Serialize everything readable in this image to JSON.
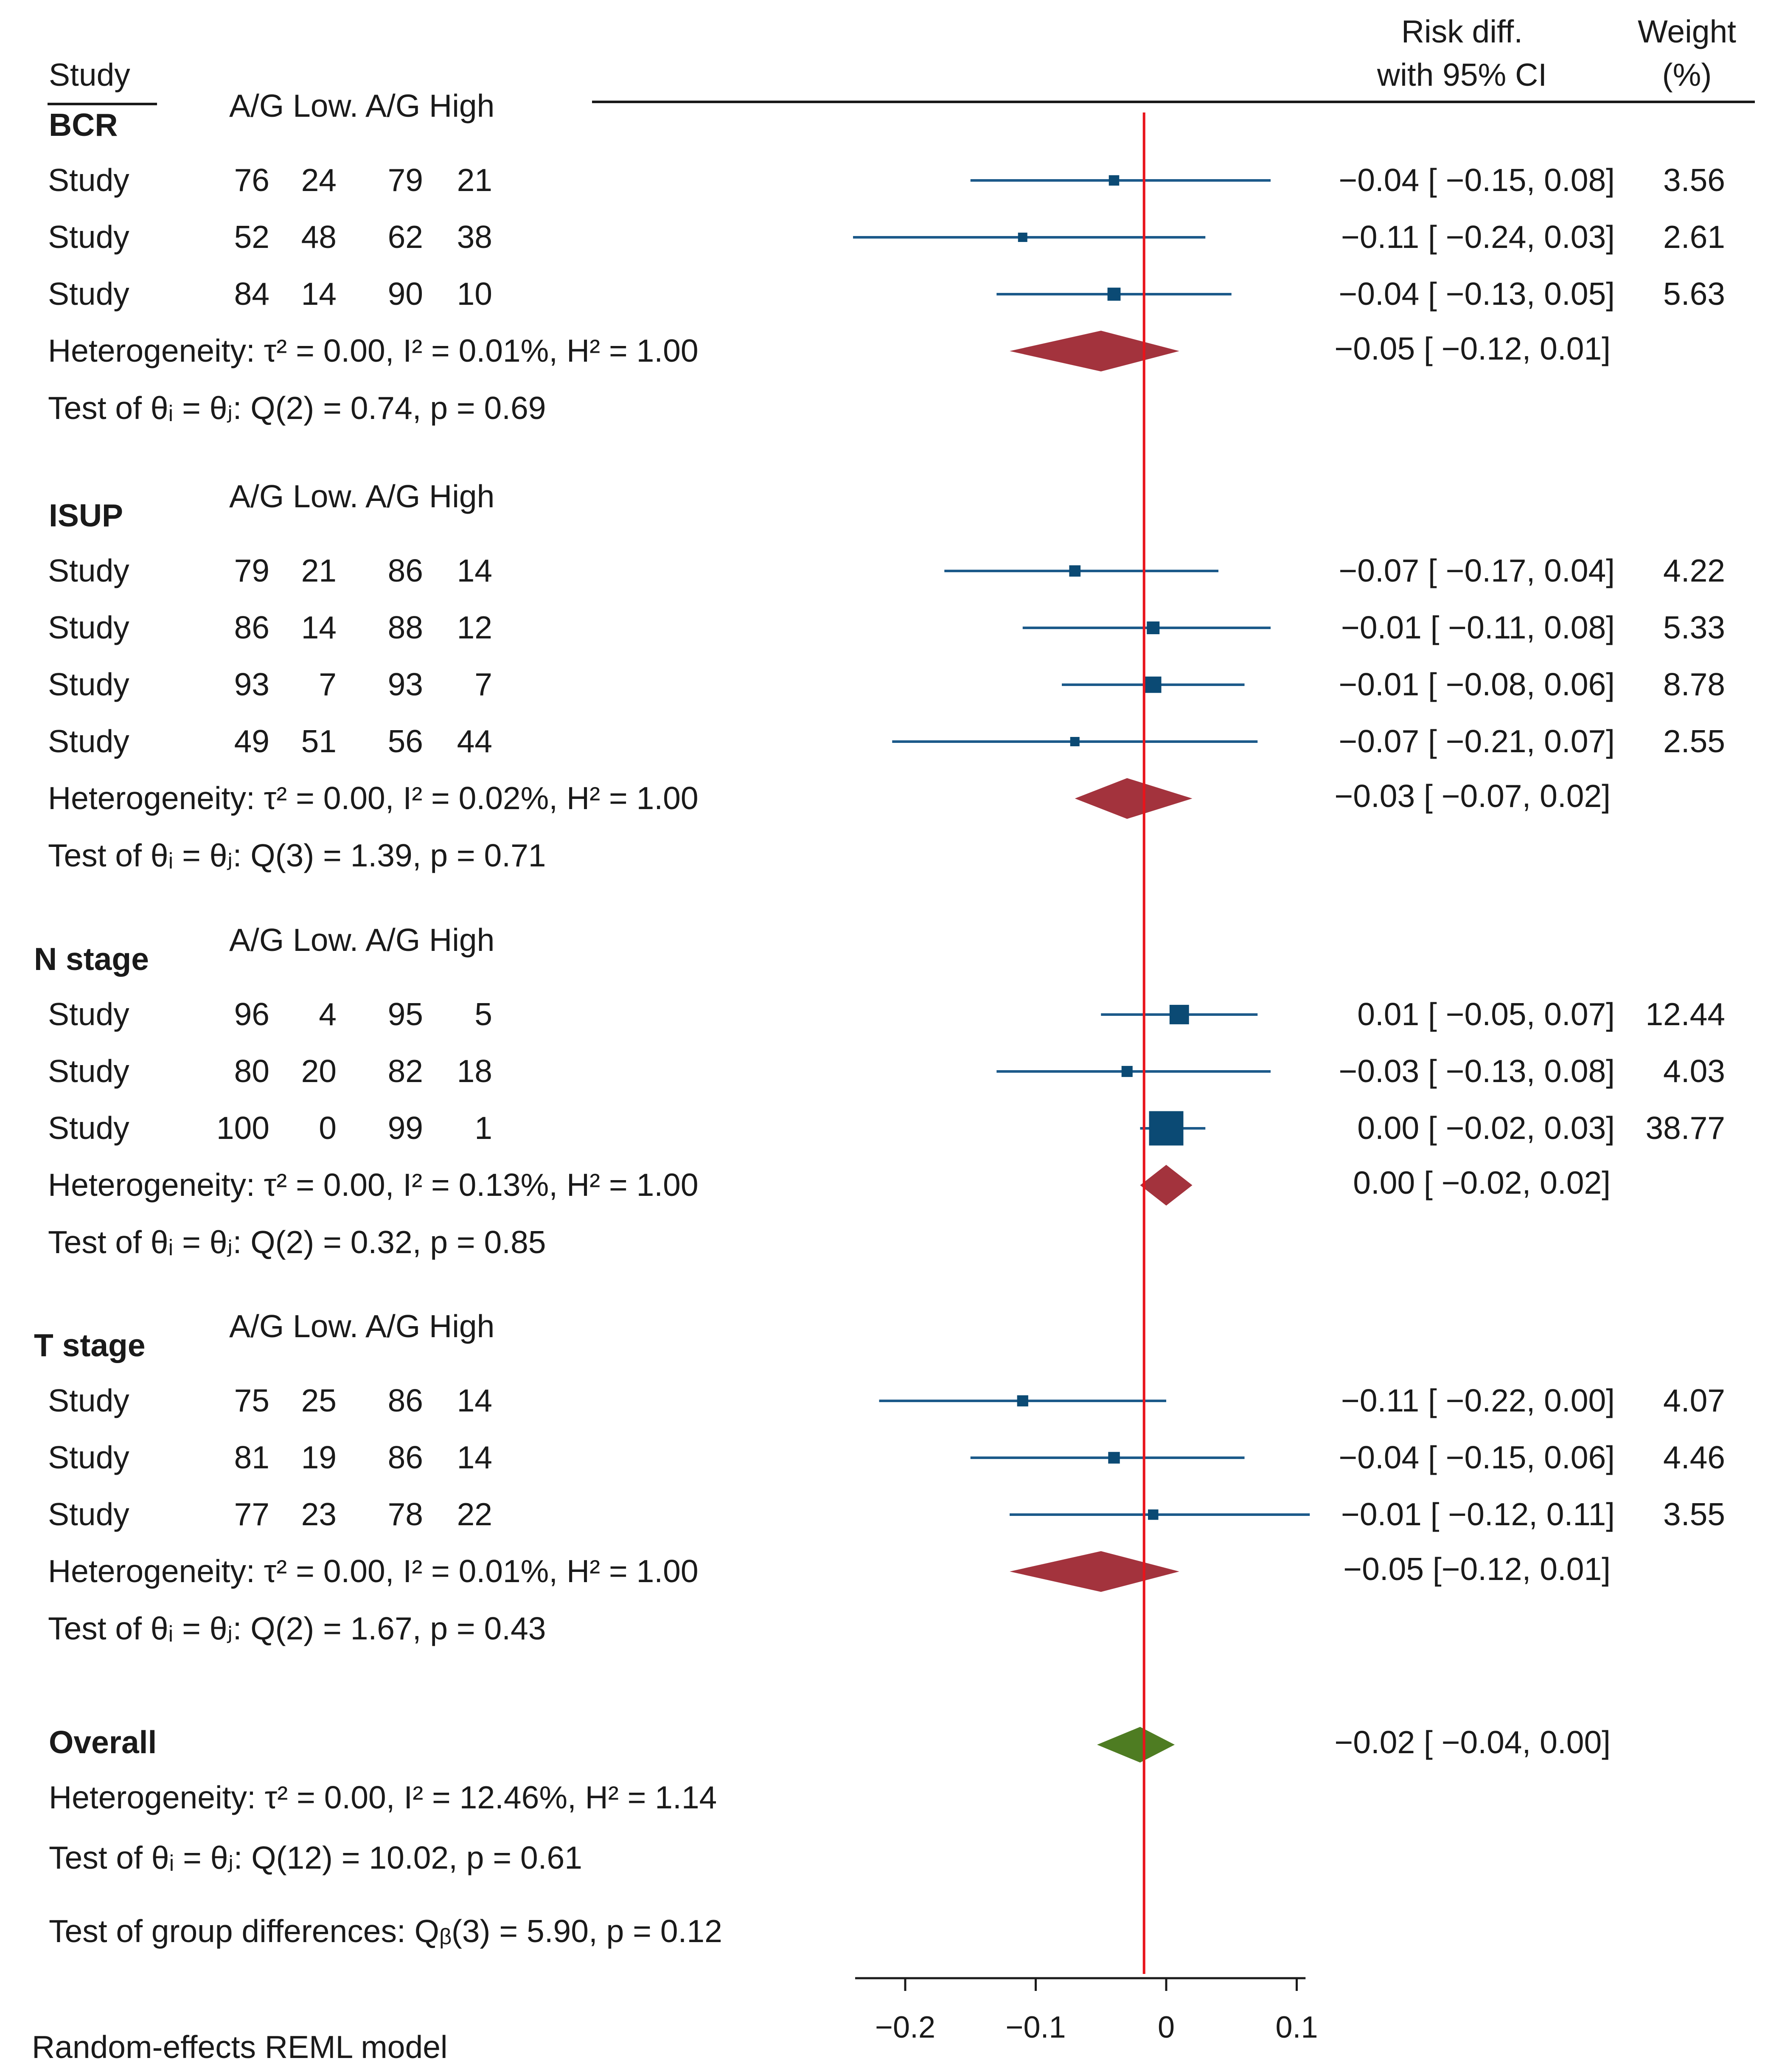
{
  "chart_data": {
    "type": "forest",
    "model_note": "Random-effects REML model",
    "headers": {
      "study": "Study",
      "effect_line1": "Risk diff.",
      "effect_line2": "with 95% CI",
      "weight_line1": "Weight",
      "weight_line2": "(%)"
    },
    "x_axis": {
      "range": [
        -0.24,
        0.11
      ],
      "ticks": [
        -0.2,
        -0.1,
        0,
        0.1
      ],
      "tick_labels": [
        "−0.2",
        "−0.1",
        "0",
        "0.1"
      ]
    },
    "overall_effect_line": -0.017,
    "groups": [
      {
        "name": "BCR",
        "columns": "A/G Low.  A/G High",
        "studies": [
          {
            "label": "Study",
            "counts": [
              "76",
              "24",
              "79",
              "21"
            ],
            "rd": -0.04,
            "lo": -0.15,
            "hi": 0.08,
            "weight": 3.56,
            "ci_text": "−0.04 [ −0.15,   0.08]",
            "weight_text": "3.56"
          },
          {
            "label": "Study",
            "counts": [
              "52",
              "48",
              "62",
              "38"
            ],
            "rd": -0.11,
            "lo": -0.24,
            "hi": 0.03,
            "weight": 2.61,
            "ci_text": "−0.11 [ −0.24,   0.03]",
            "weight_text": "2.61"
          },
          {
            "label": "Study",
            "counts": [
              "84",
              "14",
              "90",
              "10"
            ],
            "rd": -0.04,
            "lo": -0.13,
            "hi": 0.05,
            "weight": 5.63,
            "ci_text": "−0.04 [ −0.13,   0.05]",
            "weight_text": "5.63"
          }
        ],
        "pooled": {
          "rd": -0.05,
          "lo": -0.12,
          "hi": 0.01,
          "ci_text": "−0.05 [ −0.12, 0.01]"
        },
        "heterogeneity": "Heterogeneity: τ² = 0.00, I² = 0.01%, H² = 1.00",
        "test": "Test of θᵢ = θⱼ: Q(2) = 0.74, p = 0.69"
      },
      {
        "name": "ISUP",
        "columns": "A/G Low.  A/G High",
        "studies": [
          {
            "label": "Study",
            "counts": [
              "79",
              "21",
              "86",
              "14"
            ],
            "rd": -0.07,
            "lo": -0.17,
            "hi": 0.04,
            "weight": 4.22,
            "ci_text": "−0.07 [ −0.17, 0.04]",
            "weight_text": "4.22"
          },
          {
            "label": "Study",
            "counts": [
              "86",
              "14",
              "88",
              "12"
            ],
            "rd": -0.01,
            "lo": -0.11,
            "hi": 0.08,
            "weight": 5.33,
            "ci_text": "−0.01 [ −0.11, 0.08]",
            "weight_text": "5.33"
          },
          {
            "label": "Study",
            "counts": [
              "93",
              "7",
              "93",
              "7"
            ],
            "rd": -0.01,
            "lo": -0.08,
            "hi": 0.06,
            "weight": 8.78,
            "ci_text": "−0.01 [ −0.08, 0.06]",
            "weight_text": "8.78"
          },
          {
            "label": "Study",
            "counts": [
              "49",
              "51",
              "56",
              "44"
            ],
            "rd": -0.07,
            "lo": -0.21,
            "hi": 0.07,
            "weight": 2.55,
            "ci_text": "−0.07 [ −0.21, 0.07]",
            "weight_text": "2.55"
          }
        ],
        "pooled": {
          "rd": -0.03,
          "lo": -0.07,
          "hi": 0.02,
          "ci_text": "−0.03 [ −0.07, 0.02]"
        },
        "heterogeneity": "Heterogeneity: τ² = 0.00, I² = 0.02%, H² = 1.00",
        "test": "Test of θᵢ = θⱼ: Q(3) = 1.39, p = 0.71"
      },
      {
        "name": "N stage",
        "columns": "A/G Low.  A/G High",
        "studies": [
          {
            "label": "Study",
            "counts": [
              "96",
              "4",
              "95",
              "5"
            ],
            "rd": 0.01,
            "lo": -0.05,
            "hi": 0.07,
            "weight": 12.44,
            "ci_text": "0.01 [ −0.05,   0.07]",
            "weight_text": "12.44"
          },
          {
            "label": "Study",
            "counts": [
              "80",
              "20",
              "82",
              "18"
            ],
            "rd": -0.03,
            "lo": -0.13,
            "hi": 0.08,
            "weight": 4.03,
            "ci_text": "−0.03 [ −0.13,   0.08]",
            "weight_text": "4.03"
          },
          {
            "label": "Study",
            "counts": [
              "100",
              "0",
              "99",
              "1"
            ],
            "rd": 0.0,
            "lo": -0.02,
            "hi": 0.03,
            "weight": 38.77,
            "ci_text": "0.00 [ −0.02,   0.03]",
            "weight_text": "38.77"
          }
        ],
        "pooled": {
          "rd": 0.0,
          "lo": -0.02,
          "hi": 0.02,
          "ci_text": "0.00 [ −0.02,   0.02]"
        },
        "heterogeneity": "Heterogeneity: τ² = 0.00, I² = 0.13%, H² = 1.00",
        "test": "Test of θᵢ = θⱼ: Q(2) = 0.32, p = 0.85"
      },
      {
        "name": "T stage",
        "columns": "A/G Low.  A/G High",
        "studies": [
          {
            "label": "Study",
            "counts": [
              "75",
              "25",
              "86",
              "14"
            ],
            "rd": -0.11,
            "lo": -0.22,
            "hi": 0.0,
            "weight": 4.07,
            "ci_text": "−0.11 [ −0.22,  0.00]",
            "weight_text": "4.07"
          },
          {
            "label": "Study",
            "counts": [
              "81",
              "19",
              "86",
              "14"
            ],
            "rd": -0.04,
            "lo": -0.15,
            "hi": 0.06,
            "weight": 4.46,
            "ci_text": "−0.04 [ −0.15, 0.06]",
            "weight_text": "4.46"
          },
          {
            "label": "Study",
            "counts": [
              "77",
              "23",
              "78",
              "22"
            ],
            "rd": -0.01,
            "lo": -0.12,
            "hi": 0.11,
            "weight": 3.55,
            "ci_text": "−0.01 [ −0.12, 0.11]",
            "weight_text": "3.55"
          }
        ],
        "pooled": {
          "rd": -0.05,
          "lo": -0.12,
          "hi": 0.01,
          "ci_text": "−0.05 [−0.12, 0.01]"
        },
        "heterogeneity": "Heterogeneity: τ² = 0.00, I² = 0.01%, H² = 1.00",
        "test": "Test of θᵢ = θⱼ: Q(2) = 1.67, p = 0.43"
      }
    ],
    "overall": {
      "name": "Overall",
      "rd": -0.02,
      "lo": -0.04,
      "hi": 0.0,
      "ci_text": "−0.02 [ −0.04,  0.00]",
      "heterogeneity": "Heterogeneity: τ² = 0.00, I² = 12.46%, H² = 1.14",
      "test": "Test of θᵢ = θⱼ: Q(12) = 10.02, p = 0.61",
      "group_test": "Test of group differences: Qᵦ(3) = 5.90, p = 0.12"
    },
    "colors": {
      "study_marker": "#0b4a74",
      "ci_line": "#1c5a8a",
      "subgroup_diamond": "#a3333d",
      "overall_diamond": "#4e7c22",
      "reference_line": "#e8141b",
      "text": "#1a1a1a"
    }
  }
}
